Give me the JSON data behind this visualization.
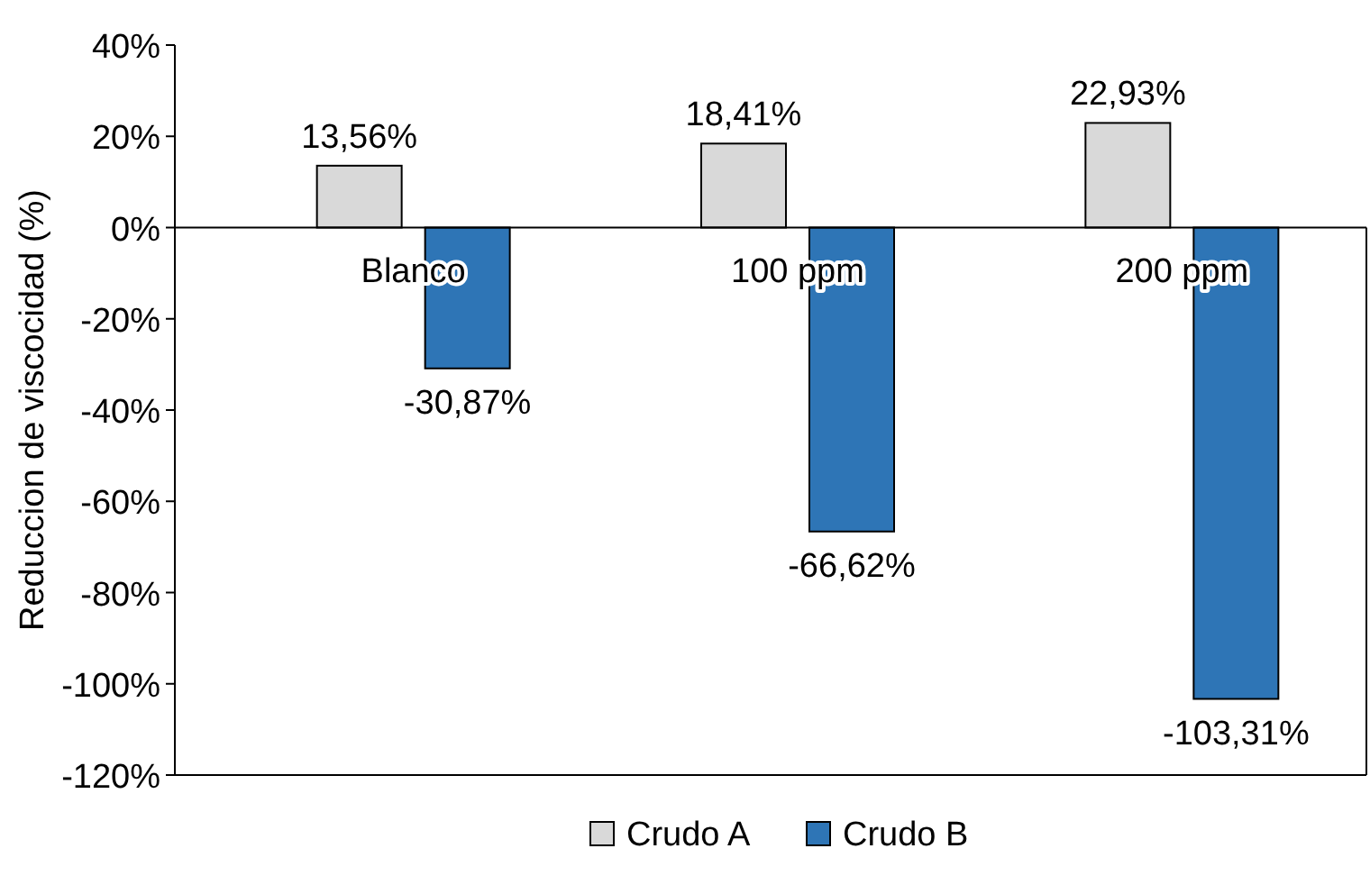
{
  "chart_data": {
    "type": "bar",
    "ylabel": "Reduccion de viscocidad (%)",
    "categories": [
      "Blanco",
      "100 ppm",
      "200 ppm"
    ],
    "series": [
      {
        "name": "Crudo A",
        "color": "#d9d9d9",
        "values": [
          13.56,
          18.41,
          22.93
        ],
        "value_labels": [
          "13,56%",
          "18,41%",
          "22,93%"
        ]
      },
      {
        "name": "Crudo B",
        "color": "#2e75b6",
        "values": [
          -30.87,
          -66.62,
          -103.31
        ],
        "value_labels": [
          "-30,87%",
          "-66,62%",
          "-103,31%"
        ]
      }
    ],
    "ylim": [
      -120,
      40
    ],
    "yticks": [
      {
        "value": 40,
        "label": "40%"
      },
      {
        "value": 20,
        "label": "20%"
      },
      {
        "value": 0,
        "label": "0%"
      },
      {
        "value": -20,
        "label": "-20%"
      },
      {
        "value": -40,
        "label": "-40%"
      },
      {
        "value": -60,
        "label": "-60%"
      },
      {
        "value": -80,
        "label": "-80%"
      },
      {
        "value": -100,
        "label": "-100%"
      },
      {
        "value": -120,
        "label": "-120%"
      }
    ],
    "grid": false,
    "legend": "bottom"
  }
}
